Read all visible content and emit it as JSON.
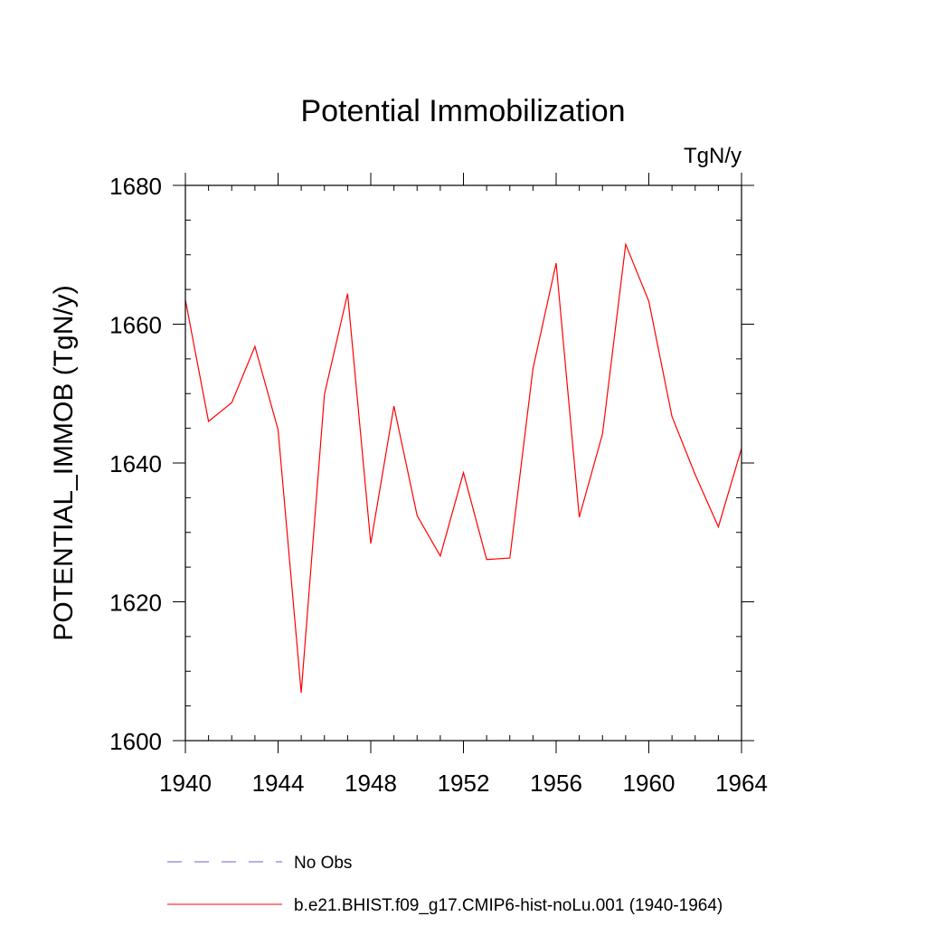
{
  "chart_data": {
    "type": "line",
    "title": "Potential Immobilization",
    "units_label": "TgN/y",
    "xlabel": "",
    "ylabel": "POTENTIAL_IMMOB  (TgN/y)",
    "xlim": [
      1940,
      1964
    ],
    "ylim": [
      1600,
      1680
    ],
    "x_ticks": [
      1940,
      1944,
      1948,
      1952,
      1956,
      1960,
      1964
    ],
    "x_tick_labels": [
      "1940",
      "1944",
      "1948",
      "1952",
      "1956",
      "1960",
      "1964"
    ],
    "y_ticks": [
      1600,
      1620,
      1640,
      1660,
      1680
    ],
    "y_tick_labels": [
      "1600",
      "1620",
      "1640",
      "1660",
      "1680"
    ],
    "x_minor_step": 1,
    "y_minor_step": 5,
    "grid": false,
    "legend_position": "bottom",
    "series": [
      {
        "name": "No Obs",
        "color": "#6666cc",
        "style": "dashed",
        "x": [],
        "y": []
      },
      {
        "name": "b.e21.BHIST.f09_g17.CMIP6-hist-noLu.001 (1940-1964)",
        "color": "#ff0000",
        "style": "solid",
        "x": [
          1940,
          1941,
          1942,
          1943,
          1944,
          1945,
          1946,
          1947,
          1948,
          1949,
          1950,
          1951,
          1952,
          1953,
          1954,
          1955,
          1956,
          1957,
          1958,
          1959,
          1960,
          1961,
          1962,
          1963,
          1964
        ],
        "y": [
          1663.5,
          1646.0,
          1648.7,
          1656.8,
          1644.8,
          1606.9,
          1649.9,
          1664.4,
          1628.4,
          1648.2,
          1632.4,
          1626.6,
          1638.6,
          1626.1,
          1626.3,
          1653.6,
          1668.8,
          1632.2,
          1644.2,
          1671.5,
          1663.3,
          1646.7,
          1638.3,
          1630.8,
          1642.1
        ]
      }
    ]
  }
}
